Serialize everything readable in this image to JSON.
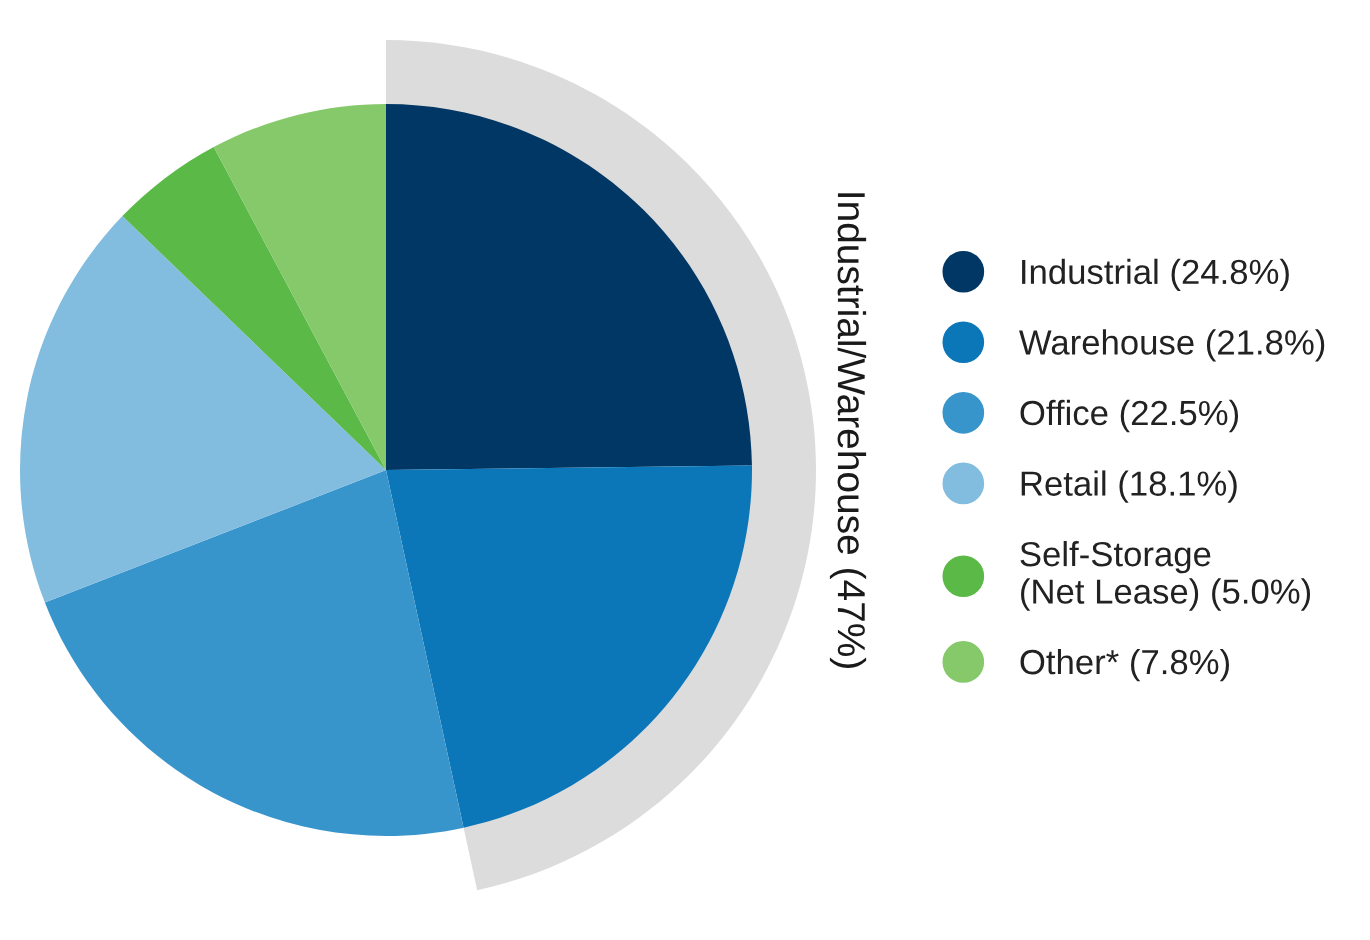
{
  "chart_data": {
    "type": "pie",
    "categories": [
      "Industrial (24.8%)",
      "Warehouse (21.8%)",
      "Office (22.5%)",
      "Retail (18.1%)",
      "Self-Storage\n(Net Lease) (5.0%)",
      "Other* (7.8%)"
    ],
    "values": [
      24.8,
      21.8,
      22.5,
      18.1,
      5.0,
      7.8
    ],
    "colors": [
      "#003764",
      "#0b77b8",
      "#3895cc",
      "#82bde0",
      "#5bb947",
      "#86c96b"
    ],
    "annotations": [
      "Industrial/Warehouse (47%)"
    ],
    "legend": "right"
  }
}
